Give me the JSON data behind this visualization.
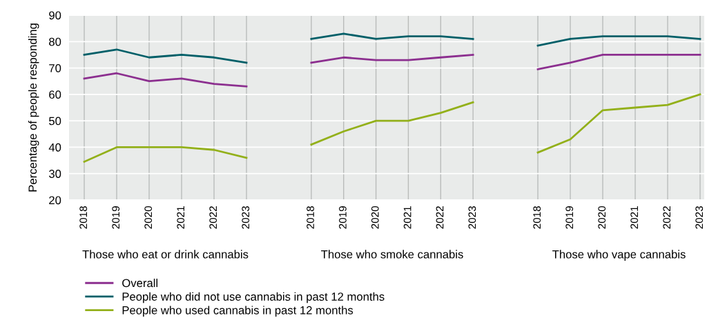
{
  "chart_data": [
    {
      "type": "line",
      "xlabel": "Those who eat or drink cannabis",
      "ylabel": "Percentage of people responding",
      "categories": [
        "2018",
        "2019",
        "2020",
        "2021",
        "2022",
        "2023"
      ],
      "ylim": [
        20,
        90
      ],
      "yticks": [
        20,
        30,
        40,
        50,
        60,
        70,
        80,
        90
      ],
      "grid": true,
      "legend": "bottom",
      "series": [
        {
          "name": "Overall",
          "color": "#8c2f8f",
          "values": [
            66,
            68,
            65,
            66,
            64,
            63
          ]
        },
        {
          "name": "People who did not use cannabis in past 12 months",
          "color": "#005f68",
          "values": [
            75,
            77,
            74,
            75,
            74,
            72
          ]
        },
        {
          "name": "People who used cannabis in past 12 months",
          "color": "#93b01a",
          "values": [
            34.5,
            40,
            40,
            40,
            39,
            36
          ]
        }
      ]
    },
    {
      "type": "line",
      "xlabel": "Those who smoke cannabis",
      "categories": [
        "2018",
        "2019",
        "2020",
        "2021",
        "2022",
        "2023"
      ],
      "ylim": [
        20,
        90
      ],
      "yticks": [
        20,
        30,
        40,
        50,
        60,
        70,
        80,
        90
      ],
      "grid": true,
      "tick_labels": "x",
      "series": [
        {
          "color": "#8c2f8f",
          "values": [
            72,
            74,
            73,
            73,
            74,
            75
          ]
        },
        {
          "color": "#005f68",
          "values": [
            81,
            83,
            81,
            82,
            82,
            81
          ]
        },
        {
          "color": "#93b01a",
          "values": [
            41,
            46,
            50,
            50,
            53,
            57
          ]
        }
      ]
    },
    {
      "type": "line",
      "xlabel": "Those who vape cannabis",
      "categories": [
        "2018",
        "2019",
        "2020",
        "2021",
        "2022",
        "2023"
      ],
      "ylim": [
        20,
        90
      ],
      "yticks": [
        20,
        30,
        40,
        50,
        60,
        70,
        80,
        90
      ],
      "grid": true,
      "tick_labels": "x",
      "series": [
        {
          "color": "#8c2f8f",
          "values": [
            69.5,
            72,
            75,
            75,
            75,
            75
          ]
        },
        {
          "color": "#005f68",
          "values": [
            78.5,
            81,
            82,
            82,
            82,
            81
          ]
        },
        {
          "color": "#93b01a",
          "values": [
            38,
            43,
            54,
            55,
            56,
            60
          ]
        }
      ]
    }
  ]
}
